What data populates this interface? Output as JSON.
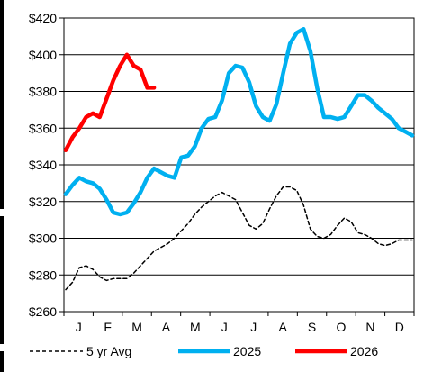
{
  "chart_data": {
    "type": "line",
    "title": "",
    "xlabel": "",
    "ylabel": "",
    "y_tick_labels": [
      "$260",
      "$280",
      "$300",
      "$320",
      "$340",
      "$360",
      "$380",
      "$400",
      "$420"
    ],
    "y_ticks": [
      260,
      280,
      300,
      320,
      340,
      360,
      380,
      400,
      420
    ],
    "ylim": [
      260,
      420
    ],
    "x_unit": "week of year",
    "xlim": [
      1,
      52
    ],
    "months": [
      "J",
      "F",
      "M",
      "A",
      "M",
      "J",
      "J",
      "A",
      "S",
      "O",
      "N",
      "D"
    ],
    "grid": "horizontal",
    "legend_position": "bottom",
    "series": [
      {
        "name": "5 yr Avg",
        "color": "#000000",
        "dash": "dashed",
        "x": [
          1,
          2,
          3,
          4,
          5,
          6,
          7,
          8,
          9,
          10,
          11,
          12,
          13,
          14,
          15,
          16,
          17,
          18,
          19,
          20,
          21,
          22,
          23,
          24,
          25,
          26,
          27,
          28,
          29,
          30,
          31,
          32,
          33,
          34,
          35,
          36,
          37,
          38,
          39,
          40,
          41,
          42,
          43,
          44,
          45,
          46,
          47,
          48,
          49,
          50,
          51,
          52
        ],
        "values": [
          272,
          276,
          284,
          285,
          283,
          279,
          277,
          278,
          278,
          278,
          281,
          285,
          289,
          293,
          295,
          297,
          300,
          304,
          308,
          313,
          317,
          320,
          323,
          325,
          323,
          321,
          314,
          307,
          305,
          308,
          316,
          323,
          328,
          328,
          326,
          318,
          305,
          301,
          300,
          302,
          307,
          311,
          309,
          303,
          302,
          300,
          297,
          296,
          297,
          299,
          299,
          299
        ]
      },
      {
        "name": "2025",
        "color": "#00B0F0",
        "dash": "solid",
        "x": [
          1,
          2,
          3,
          4,
          5,
          6,
          7,
          8,
          9,
          10,
          11,
          12,
          13,
          14,
          15,
          16,
          17,
          18,
          19,
          20,
          21,
          22,
          23,
          24,
          25,
          26,
          27,
          28,
          29,
          30,
          31,
          32,
          33,
          34,
          35,
          36,
          37,
          38,
          39,
          40,
          41,
          42,
          43,
          44,
          45,
          46,
          47,
          48,
          49,
          50,
          51,
          52
        ],
        "values": [
          324,
          329,
          333,
          331,
          330,
          327,
          321,
          314,
          313,
          314,
          319,
          325,
          333,
          338,
          336,
          334,
          333,
          344,
          345,
          350,
          360,
          365,
          366,
          375,
          390,
          394,
          393,
          385,
          372,
          366,
          364,
          373,
          390,
          406,
          412,
          414,
          402,
          382,
          366,
          366,
          365,
          366,
          372,
          378,
          378,
          375,
          371,
          368,
          365,
          360,
          358,
          356
        ]
      },
      {
        "name": "2026",
        "color": "#FF0000",
        "dash": "solid",
        "x": [
          1,
          2,
          3,
          4,
          5,
          6,
          7,
          8,
          9,
          10,
          11,
          12,
          13,
          14
        ],
        "values": [
          348,
          355,
          360,
          366,
          368,
          366,
          376,
          386,
          394,
          400,
          394,
          392,
          382,
          382
        ]
      }
    ]
  }
}
